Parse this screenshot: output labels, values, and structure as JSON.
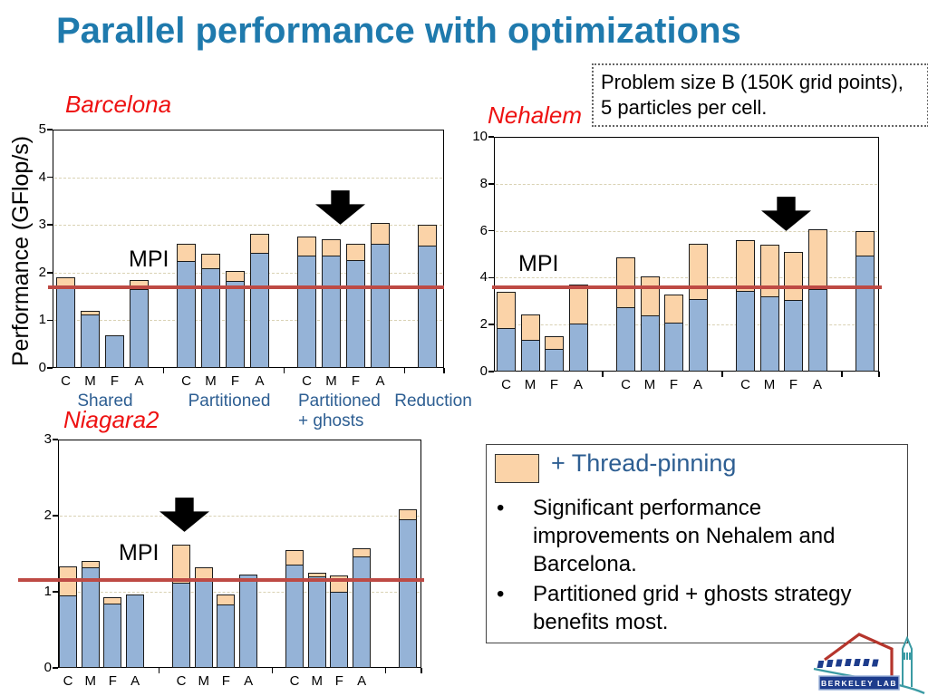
{
  "slide": {
    "title": "Parallel performance with optimizations",
    "note_box": "Problem size B (150K grid points),\n5 particles per cell.",
    "y_axis_title": "Performance (GFlop/s)"
  },
  "group_labels_row": [
    "Shared",
    "Partitioned",
    "Partitioned\n+ ghosts",
    "Reduction"
  ],
  "legend": {
    "bullet_char": "•",
    "label": "+ Thread-pinning",
    "bullets": [
      "Significant performance improvements on Nehalem and Barcelona.",
      "Partitioned grid + ghosts strategy benefits most."
    ]
  },
  "logo": {
    "text": "BERKELEY LAB"
  },
  "colors": {
    "title_blue": "#1f7aad",
    "chart_title_red": "#ee1111",
    "steel_blue_text": "#2d5e92",
    "bar_blue": "#95b3d7",
    "bar_tan": "#fbd3a8",
    "mpi_line_red": "#be4a44",
    "gridline": "#d9d2b4",
    "bar_border": "#1b1b1b"
  },
  "chart_data": [
    {
      "type": "bar",
      "title": "Barcelona",
      "stacked": true,
      "increment_legend": "+ Thread-pinning",
      "ylabel": "Performance (GFlop/s)",
      "ylim": [
        0,
        5
      ],
      "yticks": [
        0,
        1,
        2,
        3,
        4,
        5
      ],
      "mpi_line": {
        "label": "MPI",
        "value": 1.7
      },
      "arrow_target_group": 2,
      "groups": [
        {
          "name": "Shared",
          "bars": [
            {
              "label": "C",
              "base": 1.7,
              "total": 1.9
            },
            {
              "label": "M",
              "base": 1.12,
              "total": 1.2
            },
            {
              "label": "F",
              "base": 0.69,
              "total": 0.69
            },
            {
              "label": "A",
              "base": 1.65,
              "total": 1.85
            }
          ]
        },
        {
          "name": "Partitioned",
          "bars": [
            {
              "label": "C",
              "base": 2.25,
              "total": 2.6
            },
            {
              "label": "M",
              "base": 2.1,
              "total": 2.4
            },
            {
              "label": "F",
              "base": 1.82,
              "total": 2.04
            },
            {
              "label": "A",
              "base": 2.42,
              "total": 2.82
            }
          ]
        },
        {
          "name": "Partitioned + ghosts",
          "bars": [
            {
              "label": "C",
              "base": 2.36,
              "total": 2.76
            },
            {
              "label": "M",
              "base": 2.36,
              "total": 2.7
            },
            {
              "label": "F",
              "base": 2.27,
              "total": 2.61
            },
            {
              "label": "A",
              "base": 2.61,
              "total": 3.05
            }
          ]
        },
        {
          "name": "Reduction",
          "bars": [
            {
              "label": "",
              "base": 2.57,
              "total": 3.0
            }
          ]
        }
      ]
    },
    {
      "type": "bar",
      "title": "Nehalem",
      "stacked": true,
      "increment_legend": "+ Thread-pinning",
      "ylim": [
        0,
        10
      ],
      "yticks": [
        0,
        2,
        4,
        6,
        8,
        10
      ],
      "mpi_line": {
        "label": "MPI",
        "value": 3.6
      },
      "arrow_target_group": 2,
      "groups": [
        {
          "name": "Shared",
          "bars": [
            {
              "label": "C",
              "base": 1.85,
              "total": 3.4
            },
            {
              "label": "M",
              "base": 1.35,
              "total": 2.45
            },
            {
              "label": "F",
              "base": 0.95,
              "total": 1.5
            },
            {
              "label": "A",
              "base": 2.05,
              "total": 3.7
            }
          ]
        },
        {
          "name": "Partitioned",
          "bars": [
            {
              "label": "C",
              "base": 2.75,
              "total": 4.85
            },
            {
              "label": "M",
              "base": 2.4,
              "total": 4.05
            },
            {
              "label": "F",
              "base": 2.1,
              "total": 3.3
            },
            {
              "label": "A",
              "base": 3.1,
              "total": 5.45
            }
          ]
        },
        {
          "name": "Partitioned + ghosts",
          "bars": [
            {
              "label": "C",
              "base": 3.45,
              "total": 5.6
            },
            {
              "label": "M",
              "base": 3.2,
              "total": 5.4
            },
            {
              "label": "F",
              "base": 3.05,
              "total": 5.1
            },
            {
              "label": "A",
              "base": 3.5,
              "total": 6.05
            }
          ]
        },
        {
          "name": "Reduction",
          "bars": [
            {
              "label": "",
              "base": 4.95,
              "total": 6.0
            }
          ]
        }
      ]
    },
    {
      "type": "bar",
      "title": "Niagara2",
      "stacked": true,
      "increment_legend": "+ Thread-pinning",
      "ylim": [
        0,
        3
      ],
      "yticks": [
        0,
        1,
        2,
        3
      ],
      "mpi_line": {
        "label": "MPI",
        "value": 1.15
      },
      "arrow_target_group": 1,
      "groups": [
        {
          "name": "Shared",
          "bars": [
            {
              "label": "C",
              "base": 0.95,
              "total": 1.33
            },
            {
              "label": "M",
              "base": 1.32,
              "total": 1.4
            },
            {
              "label": "F",
              "base": 0.85,
              "total": 0.93
            },
            {
              "label": "A",
              "base": 0.97,
              "total": 0.98
            }
          ]
        },
        {
          "name": "Partitioned",
          "bars": [
            {
              "label": "C",
              "base": 1.12,
              "total": 1.62
            },
            {
              "label": "M",
              "base": 1.18,
              "total": 1.32
            },
            {
              "label": "F",
              "base": 0.83,
              "total": 0.97
            },
            {
              "label": "A",
              "base": 1.23,
              "total": 1.25
            }
          ]
        },
        {
          "name": "Partitioned + ghosts",
          "bars": [
            {
              "label": "C",
              "base": 1.36,
              "total": 1.55
            },
            {
              "label": "M",
              "base": 1.2,
              "total": 1.25
            },
            {
              "label": "F",
              "base": 1.0,
              "total": 1.21
            },
            {
              "label": "A",
              "base": 1.46,
              "total": 1.57
            }
          ]
        },
        {
          "name": "Reduction",
          "bars": [
            {
              "label": "",
              "base": 1.95,
              "total": 2.08
            }
          ]
        }
      ]
    }
  ]
}
